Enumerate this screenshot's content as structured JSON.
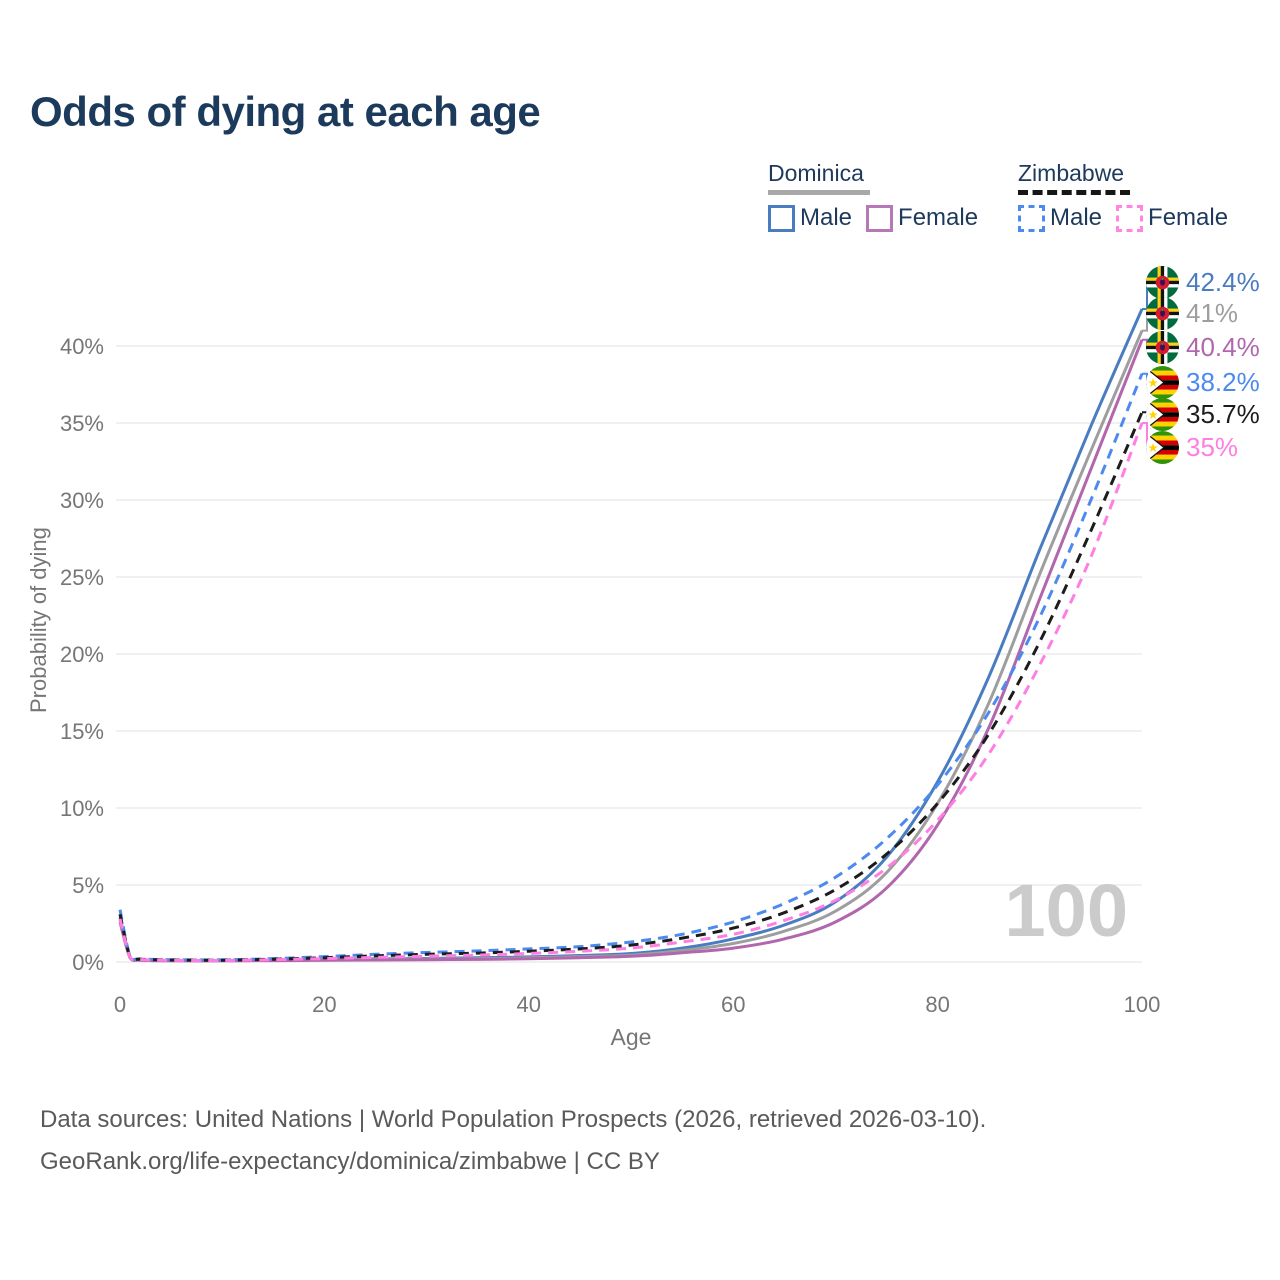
{
  "title": "Odds of dying at each age",
  "legend": {
    "groups": [
      {
        "name": "Dominica",
        "underline_style": "solid",
        "underline_color": "#a8a8a8",
        "items": [
          {
            "label": "Male",
            "color": "#4a7cc0",
            "dashed": false
          },
          {
            "label": "Female",
            "color": "#b878b8",
            "dashed": false
          }
        ]
      },
      {
        "name": "Zimbabwe",
        "underline_style": "dashed",
        "underline_color": "#161616",
        "items": [
          {
            "label": "Male",
            "color": "#4d8af0",
            "dashed": true
          },
          {
            "label": "Female",
            "color": "#ff85e0",
            "dashed": true
          }
        ]
      }
    ]
  },
  "chart_data": {
    "type": "line",
    "title": "Odds of dying at each age",
    "xlabel": "Age",
    "ylabel": "Probability of dying",
    "xlim": [
      0,
      100
    ],
    "ylim": [
      0,
      44
    ],
    "grid": "horizontal",
    "watermark": "100",
    "x_ticks": [
      {
        "value": 0,
        "label": "0"
      },
      {
        "value": 20,
        "label": "20"
      },
      {
        "value": 40,
        "label": "40"
      },
      {
        "value": 60,
        "label": "60"
      },
      {
        "value": 80,
        "label": "80"
      },
      {
        "value": 100,
        "label": "100"
      }
    ],
    "y_ticks": [
      {
        "value": 0,
        "label": "0%"
      },
      {
        "value": 5,
        "label": "5%"
      },
      {
        "value": 10,
        "label": "10%"
      },
      {
        "value": 15,
        "label": "15%"
      },
      {
        "value": 20,
        "label": "20%"
      },
      {
        "value": 25,
        "label": "25%"
      },
      {
        "value": 30,
        "label": "30%"
      },
      {
        "value": 35,
        "label": "35%"
      },
      {
        "value": 40,
        "label": "40%"
      }
    ],
    "x": [
      0,
      1,
      2,
      5,
      10,
      15,
      20,
      25,
      30,
      35,
      40,
      45,
      50,
      55,
      60,
      65,
      70,
      75,
      80,
      85,
      90,
      95,
      100
    ],
    "series": [
      {
        "name": "Dominica Male",
        "color": "#4a7cc0",
        "dash": "solid",
        "values": [
          2.9,
          0.3,
          0.15,
          0.1,
          0.1,
          0.13,
          0.18,
          0.2,
          0.23,
          0.27,
          0.33,
          0.42,
          0.55,
          0.9,
          1.5,
          2.4,
          3.9,
          6.8,
          11.7,
          18.5,
          26.8,
          34.8,
          42.4
        ],
        "end_label": "42.4%"
      },
      {
        "name": "Dominica (both sexes)",
        "color": "#9e9e9e",
        "dash": "solid",
        "values": [
          2.75,
          0.27,
          0.13,
          0.09,
          0.09,
          0.11,
          0.15,
          0.17,
          0.19,
          0.22,
          0.27,
          0.35,
          0.45,
          0.75,
          1.2,
          2.0,
          3.3,
          5.8,
          10.3,
          16.8,
          25.2,
          33.2,
          41.0
        ],
        "end_label": "41%"
      },
      {
        "name": "Dominica Female",
        "color": "#b166ad",
        "dash": "solid",
        "values": [
          2.6,
          0.25,
          0.12,
          0.08,
          0.08,
          0.09,
          0.11,
          0.13,
          0.15,
          0.17,
          0.21,
          0.28,
          0.37,
          0.6,
          0.9,
          1.5,
          2.6,
          4.8,
          8.9,
          15.2,
          23.6,
          32.0,
          40.4
        ],
        "end_label": "40.4%"
      },
      {
        "name": "Zimbabwe Male",
        "color": "#4d8af0",
        "dash": "dashed",
        "values": [
          3.4,
          0.35,
          0.2,
          0.15,
          0.14,
          0.22,
          0.35,
          0.5,
          0.62,
          0.72,
          0.85,
          1.0,
          1.3,
          1.8,
          2.6,
          3.8,
          5.5,
          8.0,
          11.5,
          16.2,
          22.4,
          30.0,
          38.2
        ],
        "end_label": "38.2%"
      },
      {
        "name": "Zimbabwe (both sexes)",
        "color": "#1c1c1c",
        "dash": "dashed",
        "values": [
          3.1,
          0.32,
          0.18,
          0.13,
          0.12,
          0.18,
          0.28,
          0.4,
          0.5,
          0.58,
          0.7,
          0.85,
          1.1,
          1.55,
          2.2,
          3.2,
          4.7,
          7.0,
          10.3,
          14.8,
          20.8,
          28.0,
          35.7
        ],
        "end_label": "35.7%"
      },
      {
        "name": "Zimbabwe Female",
        "color": "#ff7ee3",
        "dash": "dashed",
        "values": [
          2.8,
          0.3,
          0.16,
          0.11,
          0.1,
          0.15,
          0.22,
          0.3,
          0.38,
          0.45,
          0.55,
          0.7,
          0.9,
          1.3,
          1.8,
          2.7,
          4.0,
          6.1,
          9.2,
          13.5,
          19.3,
          26.3,
          35.0
        ],
        "end_label": "35%"
      }
    ],
    "legend_position": "top-right"
  },
  "end_labels": [
    {
      "value": "42.4%",
      "color": "#4a7cc0",
      "flag": "dominica-flag-icon"
    },
    {
      "value": "41%",
      "color": "#9e9e9e",
      "flag": "dominica-flag-icon"
    },
    {
      "value": "40.4%",
      "color": "#b166ad",
      "flag": "dominica-flag-icon"
    },
    {
      "value": "38.2%",
      "color": "#4d8af0",
      "flag": "zimbabwe-flag-icon"
    },
    {
      "value": "35.7%",
      "color": "#1c1c1c",
      "flag": "zimbabwe-flag-icon"
    },
    {
      "value": "35%",
      "color": "#ff7ee3",
      "flag": "zimbabwe-flag-icon"
    }
  ],
  "footer": {
    "line1": "Data sources: United Nations | World Population Prospects (2026, retrieved 2026-03-10).",
    "line2": "GeoRank.org/life-expectancy/dominica/zimbabwe | CC BY"
  }
}
